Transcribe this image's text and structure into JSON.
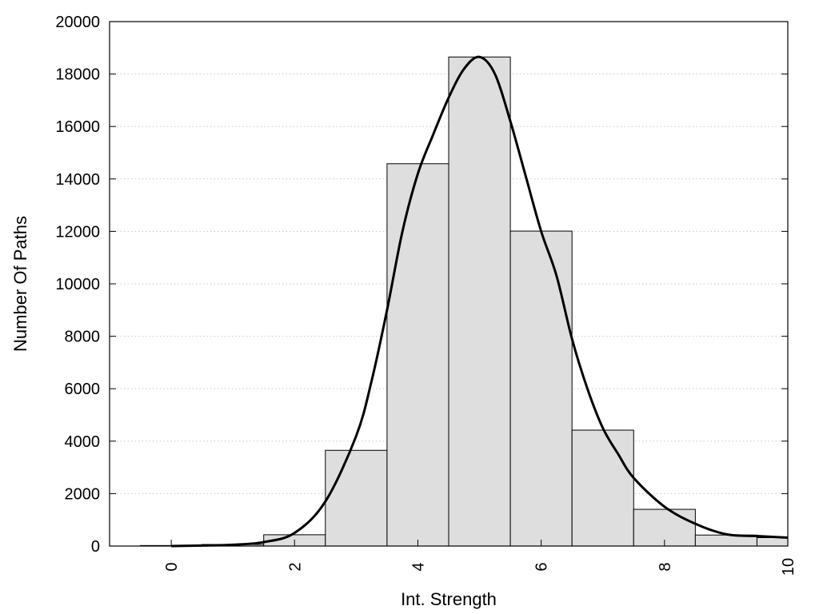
{
  "chart_data": {
    "type": "bar",
    "xlabel": "Int. Strength",
    "ylabel": "Number Of Paths",
    "xlim": [
      -1,
      10
    ],
    "ylim": [
      0,
      20000
    ],
    "x_ticks": [
      0,
      2,
      4,
      6,
      8,
      10
    ],
    "y_ticks": [
      0,
      2000,
      4000,
      6000,
      8000,
      10000,
      12000,
      14000,
      16000,
      18000,
      20000
    ],
    "grid": "horizontal-dotted",
    "bars": [
      {
        "x": 0,
        "value": 20
      },
      {
        "x": 1,
        "value": 60
      },
      {
        "x": 2,
        "value": 430
      },
      {
        "x": 3,
        "value": 3650
      },
      {
        "x": 4,
        "value": 14580
      },
      {
        "x": 5,
        "value": 18650
      },
      {
        "x": 6,
        "value": 12010
      },
      {
        "x": 7,
        "value": 4420
      },
      {
        "x": 8,
        "value": 1400
      },
      {
        "x": 9,
        "value": 420
      },
      {
        "x": 10,
        "value": 320
      }
    ],
    "curve": {
      "x": [
        0,
        0.5,
        1,
        1.5,
        2,
        2.5,
        3,
        3.25,
        3.5,
        3.75,
        4,
        4.25,
        4.5,
        4.75,
        5,
        5.25,
        5.5,
        5.75,
        6,
        6.25,
        6.5,
        6.75,
        7,
        7.25,
        7.5,
        8,
        8.5,
        9,
        9.5,
        10
      ],
      "y": [
        0,
        20,
        50,
        150,
        500,
        1700,
        4200,
        6300,
        9000,
        12000,
        14200,
        15700,
        17100,
        18200,
        18650,
        18000,
        16200,
        14100,
        12000,
        10300,
        7900,
        6000,
        4500,
        3500,
        2600,
        1500,
        850,
        450,
        380,
        320
      ]
    }
  }
}
